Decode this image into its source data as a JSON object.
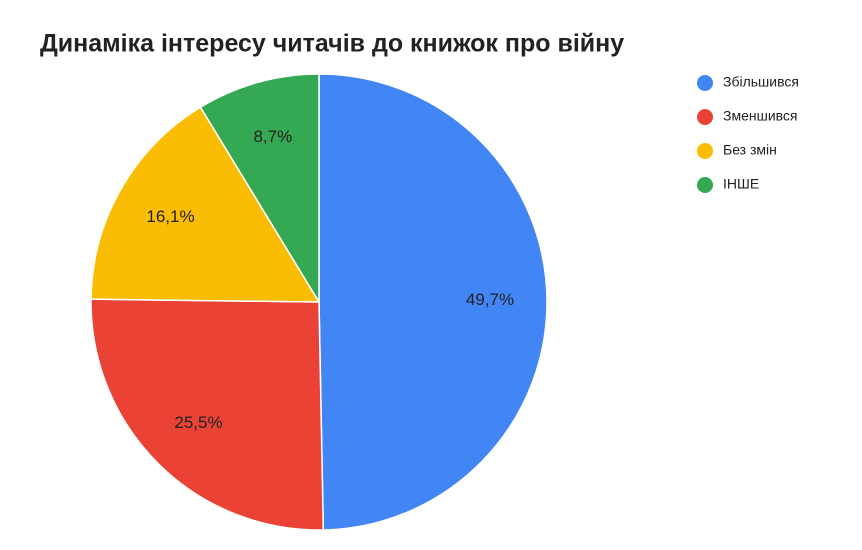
{
  "chart_data": {
    "type": "pie",
    "title": "Динаміка інтересу читачів до книжок про війну",
    "categories": [
      "Збільшився",
      "Зменшився",
      "Без змін",
      "ІНШЕ"
    ],
    "values": [
      49.7,
      25.5,
      16.1,
      8.7
    ],
    "value_labels": [
      "49,7%",
      "25,5%",
      "16,1%",
      "8,7%"
    ],
    "colors": [
      "#4285f4",
      "#ea4335",
      "#fbbc04",
      "#34a853"
    ],
    "legend": "right"
  }
}
